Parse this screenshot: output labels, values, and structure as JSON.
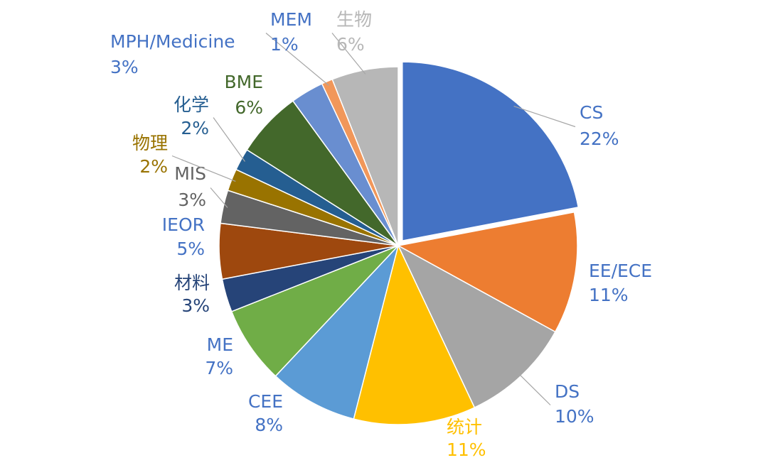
{
  "chart_data": {
    "type": "pie",
    "categories": [
      "CS",
      "EE/ECE",
      "DS",
      "统计",
      "CEE",
      "ME",
      "材料",
      "IEOR",
      "MIS",
      "物理",
      "化学",
      "BME",
      "MPH/Medicine",
      "MEM",
      "生物"
    ],
    "values": [
      22,
      11,
      10,
      11,
      8,
      7,
      3,
      5,
      3,
      2,
      2,
      6,
      3,
      1,
      6
    ],
    "value_labels": [
      "22%",
      "11%",
      "10%",
      "11%",
      "8%",
      "7%",
      "3%",
      "5%",
      "3%",
      "2%",
      "2%",
      "6%",
      "3%",
      "1%",
      "6%"
    ],
    "colors": [
      "#4472c4",
      "#ed7d31",
      "#a5a5a5",
      "#ffc000",
      "#5b9bd5",
      "#70ad47",
      "#264478",
      "#9e480e",
      "#636363",
      "#997300",
      "#255e91",
      "#43682b",
      "#698ed0",
      "#f1975a",
      "#b7b7b7"
    ],
    "label_colors": [
      "#4472c4",
      "#4472c4",
      "#4472c4",
      "#ffc000",
      "#4472c4",
      "#4472c4",
      "#264478",
      "#4472c4",
      "#636363",
      "#997300",
      "#255e91",
      "#43682b",
      "#4472c4",
      "#4472c4",
      "#b7b7b7"
    ]
  }
}
